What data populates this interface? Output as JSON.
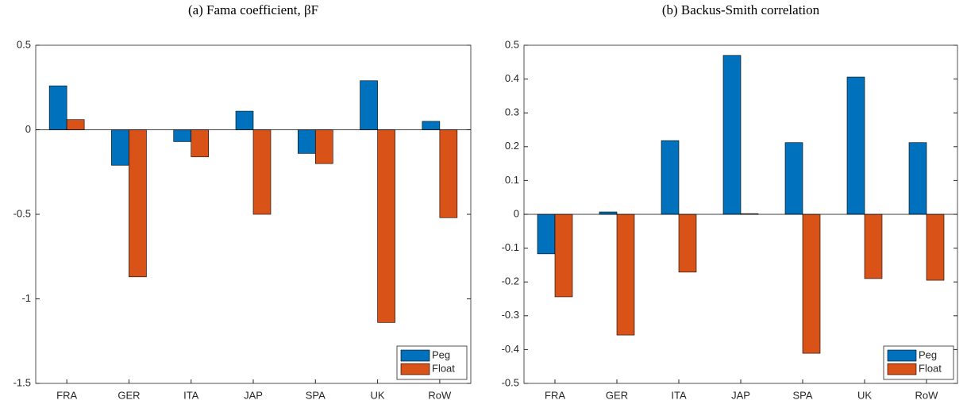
{
  "chart_data": [
    {
      "type": "bar",
      "title": "(a) Fama coefficient, βF",
      "categories": [
        "FRA",
        "GER",
        "ITA",
        "JAP",
        "SPA",
        "UK",
        "RoW"
      ],
      "series": [
        {
          "name": "Peg",
          "color": "#0072BD",
          "values": [
            0.26,
            -0.21,
            -0.07,
            0.11,
            -0.14,
            0.29,
            0.05
          ]
        },
        {
          "name": "Float",
          "color": "#D95319",
          "values": [
            0.06,
            -0.87,
            -0.16,
            -0.5,
            -0.2,
            -1.14,
            -0.52
          ]
        }
      ],
      "ylim": [
        -1.5,
        0.5
      ],
      "yticks": [
        -1.5,
        -1,
        -0.5,
        0,
        0.5
      ],
      "legend": "lower right"
    },
    {
      "type": "bar",
      "title": "(b) Backus-Smith correlation",
      "categories": [
        "FRA",
        "GER",
        "ITA",
        "JAP",
        "SPA",
        "UK",
        "RoW"
      ],
      "series": [
        {
          "name": "Peg",
          "color": "#0072BD",
          "values": [
            -0.117,
            0.007,
            0.218,
            0.47,
            0.212,
            0.406,
            0.212
          ]
        },
        {
          "name": "Float",
          "color": "#D95319",
          "values": [
            -0.244,
            -0.357,
            -0.171,
            0.002,
            -0.411,
            -0.19,
            -0.195
          ]
        }
      ],
      "ylim": [
        -0.5,
        0.5
      ],
      "yticks": [
        -0.5,
        -0.4,
        -0.3,
        -0.2,
        -0.1,
        0,
        0.1,
        0.2,
        0.3,
        0.4,
        0.5
      ],
      "legend": "lower right"
    }
  ]
}
